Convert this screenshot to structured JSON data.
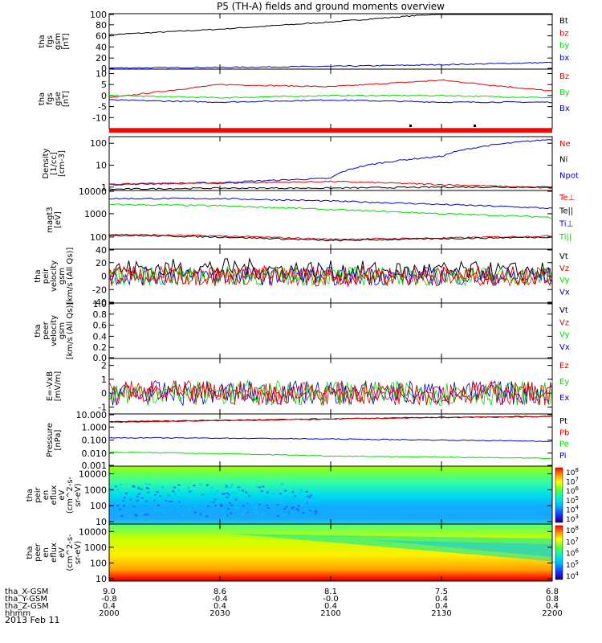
{
  "title": "P5 (TH-A) fields and ground moments overview",
  "date": "2013 Feb 11",
  "time_axis": {
    "rows": [
      {
        "label": "tha_X-GSM",
        "values": [
          "9.0",
          "8.6",
          "8.1",
          "7.5",
          "6.8"
        ]
      },
      {
        "label": "tha_Y-GSM",
        "values": [
          "-0.8",
          "-0.4",
          "-0.0",
          "0.4",
          "0.8"
        ]
      },
      {
        "label": "tha_Z-GSM",
        "values": [
          "0.4",
          "0.4",
          "0.4",
          "0.4",
          "0.4"
        ]
      },
      {
        "label": "hhmm",
        "values": [
          "2000",
          "2030",
          "2100",
          "2130",
          "2200"
        ]
      }
    ]
  },
  "colors": {
    "black": "#000000",
    "red": "#e00000",
    "green": "#00dd00",
    "blue": "#0000cc"
  },
  "colorbar_labels": {
    "ion": [
      "10^8",
      "10^7",
      "10^6",
      "10^5",
      "10^4",
      "10^3"
    ],
    "electron": [
      "10^8",
      "10^7",
      "10^6",
      "10^5",
      "10^4"
    ]
  },
  "chart_data": [
    {
      "type": "line",
      "id": "fgs_gsm",
      "ylabel": [
        "tha",
        "fgs",
        "gsm",
        "[nT]"
      ],
      "yticks": [
        "100",
        "80",
        "60",
        "40",
        "20",
        "0"
      ],
      "ylim": [
        0,
        100
      ],
      "legend": [
        {
          "name": "Bt",
          "color": "black"
        },
        {
          "name": "bz",
          "color": "red"
        },
        {
          "name": "by",
          "color": "green"
        },
        {
          "name": "bx",
          "color": "blue"
        }
      ],
      "x": [
        "2000",
        "2030",
        "2100",
        "2130",
        "2200"
      ],
      "series": [
        {
          "name": "Bt",
          "color": "black",
          "values": [
            62,
            72,
            85,
            100,
            100
          ]
        },
        {
          "name": "bx",
          "color": "blue",
          "values": [
            2,
            3,
            5,
            8,
            12
          ]
        }
      ]
    },
    {
      "type": "line",
      "id": "fgs_gse",
      "ylabel": [
        "tha",
        "fgs",
        "gse",
        "[nT]"
      ],
      "yticks": [
        "10",
        "5",
        "0",
        "-5",
        "-10"
      ],
      "ylim": [
        -15,
        12
      ],
      "legend": [
        {
          "name": "Bz",
          "color": "red"
        },
        {
          "name": "By",
          "color": "green"
        },
        {
          "name": "Bx",
          "color": "blue"
        }
      ],
      "x": [
        "2000",
        "2030",
        "2100",
        "2130",
        "2200"
      ],
      "series": [
        {
          "name": "Bz",
          "color": "red",
          "values": [
            -1,
            5,
            4,
            7,
            2
          ]
        },
        {
          "name": "By",
          "color": "green",
          "values": [
            0,
            -1,
            0,
            0,
            -1
          ]
        },
        {
          "name": "Bx",
          "color": "blue",
          "values": [
            -2,
            -3,
            -2,
            -3,
            -3
          ]
        }
      ]
    },
    {
      "type": "line",
      "id": "density",
      "ylabel": [
        "Density",
        "[1/cc]",
        "[cm-3]"
      ],
      "yticks": [
        "100",
        "10",
        "1"
      ],
      "ylim": [
        0.7,
        200
      ],
      "scale": "log",
      "legend": [
        {
          "name": "Ne",
          "color": "red"
        },
        {
          "name": "Ni",
          "color": "black"
        },
        {
          "name": "Npot",
          "color": "blue"
        }
      ],
      "x": [
        "2000",
        "2030",
        "2100",
        "2130",
        "2200"
      ],
      "series": [
        {
          "name": "Npot",
          "color": "blue",
          "values": [
            1.3,
            1.6,
            2.5,
            25,
            150
          ]
        },
        {
          "name": "Ne",
          "color": "red",
          "values": [
            1.4,
            1.5,
            1.8,
            1.3,
            0.9
          ]
        },
        {
          "name": "Ni",
          "color": "black",
          "values": [
            0.8,
            0.9,
            0.9,
            1.0,
            1.0
          ]
        }
      ]
    },
    {
      "type": "line",
      "id": "temp",
      "ylabel": [
        "magt3",
        "[eV]"
      ],
      "yticks": [
        "10000",
        "1000",
        "100"
      ],
      "ylim": [
        30,
        10000
      ],
      "scale": "log",
      "legend": [
        {
          "name": "Te⊥",
          "color": "red"
        },
        {
          "name": "Te||",
          "color": "black"
        },
        {
          "name": "Ti⊥",
          "color": "blue"
        },
        {
          "name": "Ti||",
          "color": "green"
        }
      ],
      "x": [
        "2000",
        "2030",
        "2100",
        "2130",
        "2200"
      ],
      "series": [
        {
          "name": "Ti⊥",
          "color": "blue",
          "values": [
            4500,
            4500,
            3500,
            2500,
            1700
          ]
        },
        {
          "name": "Ti||",
          "color": "green",
          "values": [
            2500,
            2200,
            1500,
            1000,
            700
          ]
        },
        {
          "name": "Te⊥",
          "color": "red",
          "values": [
            130,
            110,
            80,
            90,
            110
          ]
        },
        {
          "name": "Te||",
          "color": "black",
          "values": [
            120,
            100,
            70,
            85,
            100
          ]
        }
      ]
    },
    {
      "type": "line",
      "id": "peir_velocity",
      "ylabel": [
        "tha",
        "peir",
        "velocity",
        "gsm",
        "[km/s (All Qs)]"
      ],
      "yticks": [
        "40",
        "20",
        "0",
        "-20",
        "-40"
      ],
      "ylim": [
        -40,
        40
      ],
      "legend": [
        {
          "name": "Vt",
          "color": "black"
        },
        {
          "name": "Vz",
          "color": "red"
        },
        {
          "name": "Vy",
          "color": "green"
        },
        {
          "name": "Vx",
          "color": "blue"
        }
      ],
      "x": [
        "2000",
        "2030",
        "2100",
        "2130",
        "2200"
      ],
      "series": [
        {
          "name": "Vt",
          "color": "black",
          "values": [
            10,
            12,
            8,
            7,
            6
          ]
        },
        {
          "name": "Vz",
          "color": "red",
          "values": [
            0,
            0,
            0,
            0,
            0
          ]
        }
      ]
    },
    {
      "type": "line",
      "id": "peer_velocity",
      "ylabel": [
        "tha",
        "peer",
        "velocity",
        "gsm",
        "[km/s (All Qs)]"
      ],
      "yticks": [
        "1.0",
        "0.8",
        "0.6",
        "0.4",
        "0.2",
        "0.0"
      ],
      "ylim": [
        0,
        1
      ],
      "legend": [
        {
          "name": "Vt",
          "color": "black"
        },
        {
          "name": "Vz",
          "color": "red"
        },
        {
          "name": "Vy",
          "color": "green"
        },
        {
          "name": "Vx",
          "color": "blue"
        }
      ],
      "x": [],
      "series": []
    },
    {
      "type": "line",
      "id": "efield",
      "ylabel": [
        "E=-VxB",
        "[mV/m]"
      ],
      "yticks": [
        "2",
        "1",
        "0",
        "-1"
      ],
      "ylim": [
        -1.5,
        2.5
      ],
      "legend": [
        {
          "name": "Ez",
          "color": "red"
        },
        {
          "name": "Ey",
          "color": "green"
        },
        {
          "name": "Ex",
          "color": "blue"
        }
      ],
      "x": [
        "2000",
        "2030",
        "2100",
        "2130",
        "2200"
      ],
      "series": [
        {
          "name": "Ez",
          "color": "red",
          "values": [
            0,
            0,
            0,
            0,
            0
          ]
        }
      ]
    },
    {
      "type": "line",
      "id": "pressure",
      "ylabel": [
        "Pressure",
        "[nPa]"
      ],
      "yticks": [
        "10.000",
        "1.000",
        "0.100",
        "0.010",
        "0.001"
      ],
      "ylim": [
        0.001,
        10
      ],
      "scale": "log",
      "legend": [
        {
          "name": "Pt",
          "color": "black"
        },
        {
          "name": "Pb",
          "color": "red"
        },
        {
          "name": "Pe",
          "color": "green"
        },
        {
          "name": "Pi",
          "color": "blue"
        }
      ],
      "x": [
        "2000",
        "2030",
        "2100",
        "2130",
        "2200"
      ],
      "series": [
        {
          "name": "Pt",
          "color": "black",
          "values": [
            2.5,
            3.2,
            4.2,
            5.5,
            6.5
          ]
        },
        {
          "name": "Pb",
          "color": "red",
          "values": [
            2.3,
            3.0,
            4.0,
            5.3,
            6.3
          ]
        },
        {
          "name": "Pi",
          "color": "blue",
          "values": [
            0.15,
            0.14,
            0.12,
            0.1,
            0.08
          ]
        },
        {
          "name": "Pe",
          "color": "green",
          "values": [
            0.012,
            0.009,
            0.006,
            0.005,
            0.004
          ]
        }
      ]
    },
    {
      "type": "heatmap",
      "id": "peir_spec",
      "ylabel": [
        "tha",
        "peir",
        "en",
        "eflux",
        "eV",
        "(cm^2-s-",
        "sr-eV)"
      ],
      "yticks": [
        "10000",
        "1000",
        "100",
        "10"
      ],
      "scale": "log",
      "ylim": [
        7,
        30000
      ]
    },
    {
      "type": "heatmap",
      "id": "peer_spec",
      "ylabel": [
        "tha",
        "peer",
        "en",
        "eflux",
        "eV",
        "(cm^2-s-",
        "sr-eV)"
      ],
      "yticks": [
        "10000",
        "1000",
        "100",
        "10"
      ],
      "scale": "log",
      "ylim": [
        7,
        30000
      ]
    }
  ]
}
